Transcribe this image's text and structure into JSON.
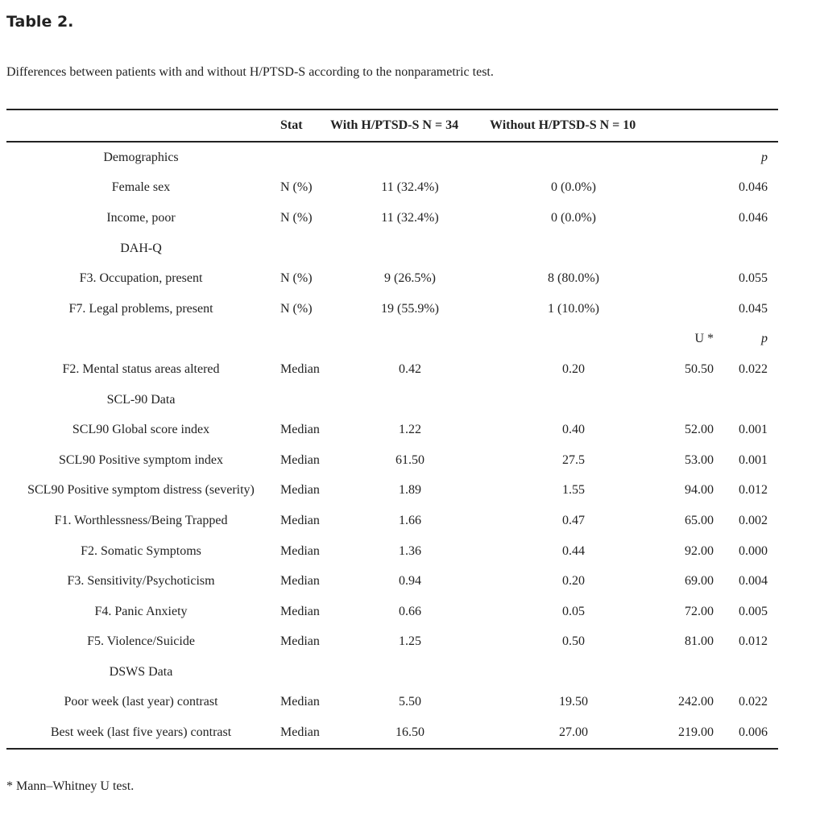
{
  "title": "Table 2.",
  "caption": "Differences between patients with and without H/PTSD-S according to the nonparametric test.",
  "header": [
    "",
    "Stat",
    "With H/PTSD-S N = 34",
    "Without H/PTSD-S N = 10",
    "",
    ""
  ],
  "rows": [
    [
      "Demographics",
      "",
      "",
      "",
      "",
      "p"
    ],
    [
      "Female sex",
      "N (%)",
      "11 (32.4%)",
      "0 (0.0%)",
      "",
      "0.046"
    ],
    [
      "Income, poor",
      "N (%)",
      "11 (32.4%)",
      "0 (0.0%)",
      "",
      "0.046"
    ],
    [
      "DAH-Q",
      "",
      "",
      "",
      "",
      ""
    ],
    [
      "F3. Occupation, present",
      "N (%)",
      "9 (26.5%)",
      "8 (80.0%)",
      "",
      "0.055"
    ],
    [
      "F7. Legal problems, present",
      "N (%)",
      "19 (55.9%)",
      "1 (10.0%)",
      "",
      "0.045"
    ],
    [
      "",
      "",
      "",
      "",
      "U *",
      "p"
    ],
    [
      "F2. Mental status areas altered",
      "Median",
      "0.42",
      "0.20",
      "50.50",
      "0.022"
    ],
    [
      "SCL-90 Data",
      "",
      "",
      "",
      "",
      ""
    ],
    [
      "SCL90 Global score index",
      "Median",
      "1.22",
      "0.40",
      "52.00",
      "0.001"
    ],
    [
      "SCL90 Positive symptom index",
      "Median",
      "61.50",
      "27.5",
      "53.00",
      "0.001"
    ],
    [
      "SCL90 Positive symptom distress (severity)",
      "Median",
      "1.89",
      "1.55",
      "94.00",
      "0.012"
    ],
    [
      "F1. Worthlessness/Being Trapped",
      "Median",
      "1.66",
      "0.47",
      "65.00",
      "0.002"
    ],
    [
      "F2. Somatic Symptoms",
      "Median",
      "1.36",
      "0.44",
      "92.00",
      "0.000"
    ],
    [
      "F3. Sensitivity/Psychoticism",
      "Median",
      "0.94",
      "0.20",
      "69.00",
      "0.004"
    ],
    [
      "F4. Panic Anxiety",
      "Median",
      "0.66",
      "0.05",
      "72.00",
      "0.005"
    ],
    [
      "F5. Violence/Suicide",
      "Median",
      "1.25",
      "0.50",
      "81.00",
      "0.012"
    ],
    [
      "DSWS Data",
      "",
      "",
      "",
      "",
      ""
    ],
    [
      "Poor week (last year) contrast",
      "Median",
      "5.50",
      "19.50",
      "242.00",
      "0.022"
    ],
    [
      "Best week (last five years) contrast",
      "Median",
      "16.50",
      "27.00",
      "219.00",
      "0.006"
    ]
  ],
  "footnote": "* Mann–Whitney U test."
}
